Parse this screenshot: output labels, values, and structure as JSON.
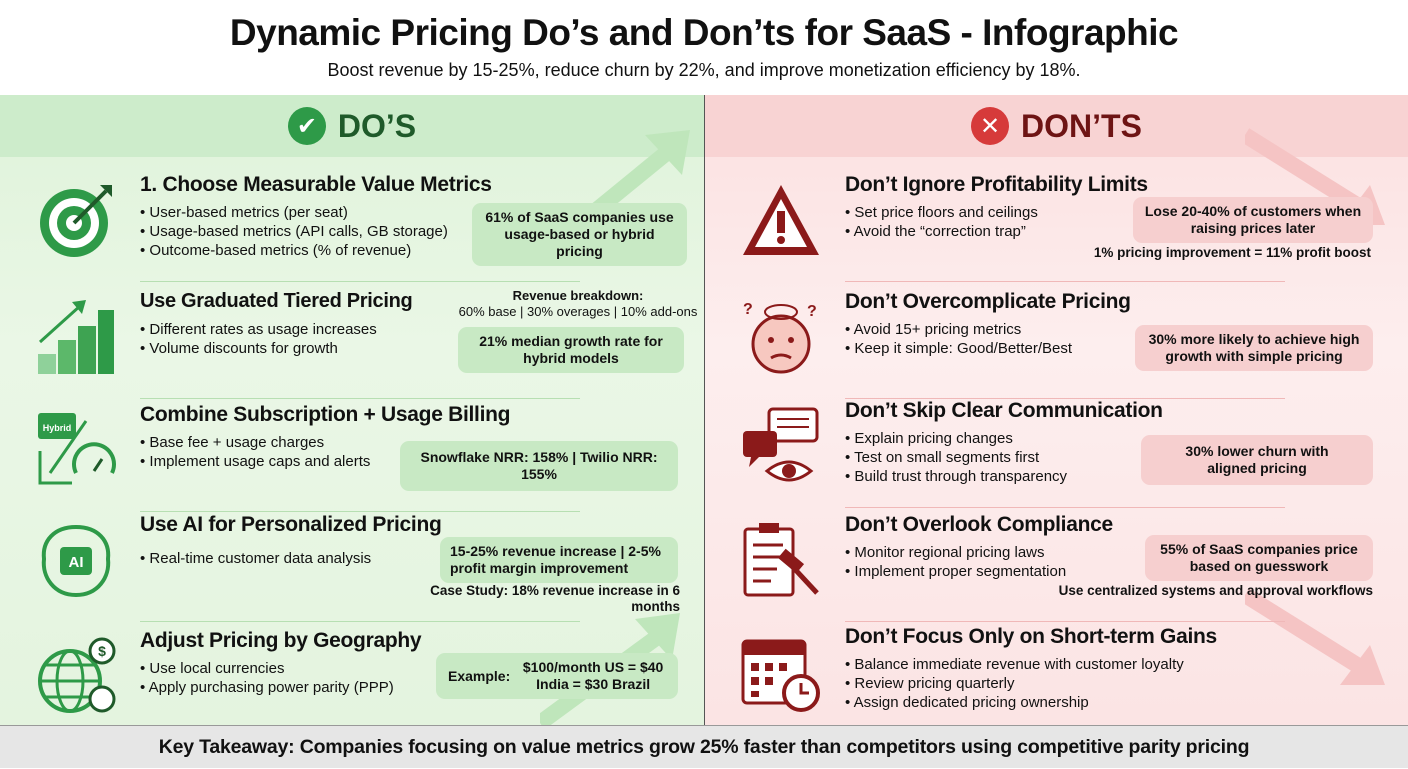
{
  "header": {
    "title": "Dynamic Pricing Do’s and Don’ts for SaaS - Infographic",
    "subtitle": "Boost revenue by 15-25%, reduce churn by 22%, and improve monetization efficiency by 18%."
  },
  "colors": {
    "do_accent": "#2e9a48",
    "dont_accent": "#d63a3a",
    "do_bg": "#e3f5df",
    "dont_bg": "#fbe3e3"
  },
  "dos": {
    "title": "DO’S",
    "icon": "check-circle-icon",
    "items": [
      {
        "title": "1. Choose Measurable Value Metrics",
        "icon": "target-icon",
        "bullets": [
          "User-based metrics (per seat)",
          "Usage-based metrics (API calls, GB storage)",
          "Outcome-based metrics (% of revenue)"
        ],
        "box": "61% of SaaS companies use usage-based or hybrid pricing"
      },
      {
        "title": "Use Graduated Tiered Pricing",
        "icon": "tiered-bars-icon",
        "bullets": [
          "Different rates as usage increases",
          "Volume discounts for growth"
        ],
        "note_title": "Revenue breakdown:",
        "note": "60% base | 30% overages | 10% add-ons",
        "box": "21% median growth rate for hybrid models"
      },
      {
        "title": "Combine Subscription + Usage Billing",
        "icon": "hybrid-meter-icon",
        "icon_label": "Hybrid",
        "bullets": [
          "Base fee + usage charges",
          "Implement usage caps and alerts"
        ],
        "box": "Snowflake NRR: 158% | Twilio NRR: 155%"
      },
      {
        "title": "Use AI for Personalized Pricing",
        "icon": "ai-brain-icon",
        "icon_label": "AI",
        "bullets": [
          "Real-time customer data analysis"
        ],
        "box": "15-25% revenue increase | 2-5% profit margin improvement",
        "note": "Case Study: 18% revenue increase in 6 months"
      },
      {
        "title": "Adjust Pricing by Geography",
        "icon": "globe-dollar-icon",
        "bullets": [
          "Use local currencies",
          "Apply purchasing power parity (PPP)"
        ],
        "box_label": "Example:",
        "box": "$100/month US = $40 India = $30 Brazil"
      }
    ]
  },
  "donts": {
    "title": "DON’TS",
    "icon": "x-circle-icon",
    "items": [
      {
        "title": "Don’t Ignore Profitability Limits",
        "icon": "warning-icon",
        "bullets": [
          "Set price floors and ceilings",
          "Avoid the “correction trap”"
        ],
        "box": "Lose 20-40% of customers when raising prices later",
        "note": "1% pricing improvement = 11% profit boost"
      },
      {
        "title": "Don’t Overcomplicate Pricing",
        "icon": "confused-face-icon",
        "bullets": [
          "Avoid 15+ pricing metrics",
          "Keep it simple: Good/Better/Best"
        ],
        "box": "30% more likely to achieve high growth with simple pricing"
      },
      {
        "title": "Don’t Skip Clear Communication",
        "icon": "chat-eye-icon",
        "bullets": [
          "Explain pricing changes",
          "Test on small segments first",
          "Build trust through transparency"
        ],
        "box": "30% lower churn with aligned pricing"
      },
      {
        "title": "Don’t Overlook Compliance",
        "icon": "clipboard-gavel-icon",
        "bullets": [
          "Monitor regional pricing laws",
          "Implement proper segmentation"
        ],
        "box": "55% of SaaS companies price based on guesswork",
        "note": "Use centralized systems and approval workflows"
      },
      {
        "title": "Don’t Focus Only on Short-term Gains",
        "icon": "calendar-clock-icon",
        "bullets": [
          "Balance immediate revenue with customer loyalty",
          "Review pricing quarterly",
          "Assign dedicated pricing ownership"
        ]
      }
    ]
  },
  "footer": {
    "text": "Key Takeaway: Companies focusing on value metrics grow 25% faster than competitors using competitive parity pricing"
  }
}
